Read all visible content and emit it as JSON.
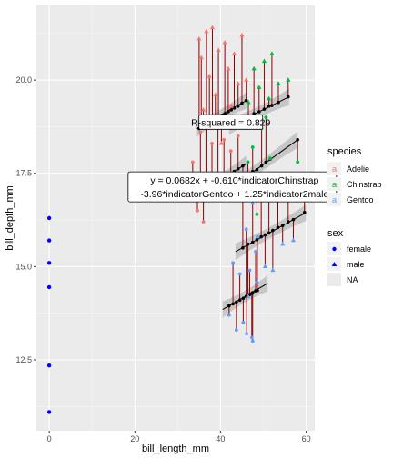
{
  "chart_data": {
    "type": "scatter",
    "title": "",
    "xlabel": "bill_length_mm",
    "ylabel": "bill_depth_mm",
    "xlim": [
      -3,
      62
    ],
    "ylim": [
      10.6,
      22
    ],
    "x_ticks": [
      0,
      20,
      40,
      60
    ],
    "y_ticks": [
      12.5,
      15.0,
      17.5,
      20.0
    ],
    "x_tick_labels": [
      "0",
      "20",
      "40",
      "60"
    ],
    "y_tick_labels": [
      "12.5",
      "15.0",
      "17.5",
      "20.0"
    ],
    "grid": true,
    "annotations": [
      {
        "text": "R-squared = 0.829",
        "x": 42.4,
        "y": 18.85
      },
      {
        "line1": "y = 0.0682x + -0.610*indicatorChinstrap",
        "line2": "-3.96*indicatorGentoo + 1.25*indicator2male",
        "x": 42.0,
        "y": 17.15
      }
    ],
    "legends": {
      "species": {
        "title": "species",
        "entries": [
          {
            "label": "Adelie",
            "color": "#F8766D"
          },
          {
            "label": "Chinstrap",
            "color": "#00BA38"
          },
          {
            "label": "Gentoo",
            "color": "#619CFF"
          }
        ]
      },
      "sex": {
        "title": "sex",
        "entries": [
          {
            "label": "female",
            "shape": "circle"
          },
          {
            "label": "male",
            "shape": "triangle"
          },
          {
            "label": "NA",
            "shape": "none"
          }
        ]
      }
    },
    "na_points": {
      "x": 0,
      "y": [
        16.3,
        15.7,
        15.1,
        14.45,
        12.35,
        11.1
      ],
      "color": "#0000FF"
    },
    "fit_lines": [
      {
        "x": [
          35.0,
          46.0
        ],
        "y": [
          17.0,
          17.75
        ],
        "group": "Adelie female"
      },
      {
        "x": [
          34.5,
          46.0
        ],
        "y": [
          18.7,
          19.45
        ],
        "group": "Adelie male"
      },
      {
        "x": [
          40.5,
          58.0
        ],
        "y": [
          16.95,
          18.4
        ],
        "group": "Chinstrap female"
      },
      {
        "x": [
          42.0,
          56.0
        ],
        "y": [
          18.75,
          19.55
        ],
        "group": "Chinstrap male"
      },
      {
        "x": [
          40.5,
          51.0
        ],
        "y": [
          13.85,
          14.55
        ],
        "group": "Gentoo female"
      },
      {
        "x": [
          43.5,
          60.0
        ],
        "y": [
          15.4,
          16.45
        ],
        "group": "Gentoo male"
      }
    ],
    "series": [
      {
        "name": "Adelie",
        "color": "#F8766D",
        "points": [
          {
            "x": 35.0,
            "y": 21.1,
            "fit": 18.7,
            "sex": "male"
          },
          {
            "x": 35.5,
            "y": 20.6,
            "fit": 18.75,
            "sex": "male"
          },
          {
            "x": 36.0,
            "y": 19.2,
            "fit": 18.78,
            "sex": "male"
          },
          {
            "x": 36.7,
            "y": 21.3,
            "fit": 18.8,
            "sex": "male"
          },
          {
            "x": 37.4,
            "y": 20.1,
            "fit": 18.85,
            "sex": "male"
          },
          {
            "x": 38.1,
            "y": 21.4,
            "fit": 18.9,
            "sex": "male"
          },
          {
            "x": 38.8,
            "y": 19.6,
            "fit": 18.95,
            "sex": "male"
          },
          {
            "x": 39.5,
            "y": 20.8,
            "fit": 19.0,
            "sex": "male"
          },
          {
            "x": 40.2,
            "y": 18.3,
            "fit": 19.05,
            "sex": "male"
          },
          {
            "x": 41.0,
            "y": 21.0,
            "fit": 19.1,
            "sex": "male"
          },
          {
            "x": 41.8,
            "y": 20.3,
            "fit": 19.15,
            "sex": "male"
          },
          {
            "x": 42.5,
            "y": 19.3,
            "fit": 19.2,
            "sex": "male"
          },
          {
            "x": 43.2,
            "y": 20.7,
            "fit": 19.25,
            "sex": "male"
          },
          {
            "x": 44.1,
            "y": 19.9,
            "fit": 19.3,
            "sex": "male"
          },
          {
            "x": 45.0,
            "y": 21.2,
            "fit": 19.38,
            "sex": "male"
          },
          {
            "x": 46.0,
            "y": 20.0,
            "fit": 19.45,
            "sex": "male"
          },
          {
            "x": 33.5,
            "y": 17.8,
            "fit": 17.0,
            "sex": "female"
          },
          {
            "x": 34.6,
            "y": 16.5,
            "fit": 17.0,
            "sex": "female"
          },
          {
            "x": 35.3,
            "y": 18.6,
            "fit": 17.05,
            "sex": "female"
          },
          {
            "x": 36.0,
            "y": 16.2,
            "fit": 17.08,
            "sex": "female"
          },
          {
            "x": 36.6,
            "y": 18.9,
            "fit": 17.12,
            "sex": "female"
          },
          {
            "x": 37.3,
            "y": 17.5,
            "fit": 17.15,
            "sex": "female"
          },
          {
            "x": 38.0,
            "y": 18.3,
            "fit": 17.2,
            "sex": "female"
          },
          {
            "x": 38.7,
            "y": 16.9,
            "fit": 17.25,
            "sex": "female"
          },
          {
            "x": 39.4,
            "y": 18.8,
            "fit": 17.3,
            "sex": "female"
          },
          {
            "x": 40.1,
            "y": 17.1,
            "fit": 17.35,
            "sex": "female"
          },
          {
            "x": 40.8,
            "y": 18.4,
            "fit": 17.4,
            "sex": "female"
          },
          {
            "x": 41.6,
            "y": 16.8,
            "fit": 17.45,
            "sex": "female"
          },
          {
            "x": 42.4,
            "y": 18.1,
            "fit": 17.5,
            "sex": "female"
          },
          {
            "x": 43.2,
            "y": 17.0,
            "fit": 17.55,
            "sex": "female"
          },
          {
            "x": 44.1,
            "y": 18.5,
            "fit": 17.62,
            "sex": "female"
          },
          {
            "x": 45.2,
            "y": 17.4,
            "fit": 17.7,
            "sex": "female"
          }
        ]
      },
      {
        "name": "Chinstrap",
        "color": "#00BA38",
        "points": [
          {
            "x": 46.5,
            "y": 19.4,
            "fit": 19.0,
            "sex": "male"
          },
          {
            "x": 47.8,
            "y": 20.3,
            "fit": 19.1,
            "sex": "male"
          },
          {
            "x": 49.0,
            "y": 19.8,
            "fit": 19.15,
            "sex": "male"
          },
          {
            "x": 50.2,
            "y": 20.5,
            "fit": 19.22,
            "sex": "male"
          },
          {
            "x": 51.3,
            "y": 19.5,
            "fit": 19.3,
            "sex": "male"
          },
          {
            "x": 52.0,
            "y": 20.7,
            "fit": 19.32,
            "sex": "male"
          },
          {
            "x": 53.5,
            "y": 19.9,
            "fit": 19.4,
            "sex": "male"
          },
          {
            "x": 55.8,
            "y": 20.0,
            "fit": 19.55,
            "sex": "male"
          },
          {
            "x": 46.4,
            "y": 17.8,
            "fit": 17.45,
            "sex": "female"
          },
          {
            "x": 47.5,
            "y": 18.2,
            "fit": 17.55,
            "sex": "female"
          },
          {
            "x": 48.5,
            "y": 16.4,
            "fit": 17.6,
            "sex": "female"
          },
          {
            "x": 49.6,
            "y": 18.7,
            "fit": 17.7,
            "sex": "female"
          },
          {
            "x": 50.6,
            "y": 19.0,
            "fit": 17.8,
            "sex": "female"
          },
          {
            "x": 51.6,
            "y": 17.9,
            "fit": 17.88,
            "sex": "female"
          },
          {
            "x": 58.0,
            "y": 17.8,
            "fit": 18.4,
            "sex": "female"
          }
        ]
      },
      {
        "name": "Gentoo",
        "color": "#619CFF",
        "points": [
          {
            "x": 46.1,
            "y": 13.2,
            "fit": 14.2,
            "sex": "female"
          },
          {
            "x": 46.8,
            "y": 14.9,
            "fit": 14.25,
            "sex": "female"
          },
          {
            "x": 47.5,
            "y": 13.0,
            "fit": 14.3,
            "sex": "female"
          },
          {
            "x": 48.2,
            "y": 15.4,
            "fit": 14.35,
            "sex": "female"
          },
          {
            "x": 42.0,
            "y": 13.7,
            "fit": 13.95,
            "sex": "female"
          },
          {
            "x": 42.9,
            "y": 15.1,
            "fit": 14.0,
            "sex": "female"
          },
          {
            "x": 43.7,
            "y": 13.3,
            "fit": 14.05,
            "sex": "female"
          },
          {
            "x": 44.5,
            "y": 14.8,
            "fit": 14.1,
            "sex": "female"
          },
          {
            "x": 45.3,
            "y": 13.5,
            "fit": 14.15,
            "sex": "female"
          },
          {
            "x": 46.0,
            "y": 16.0,
            "fit": 14.2,
            "sex": "female"
          },
          {
            "x": 47.3,
            "y": 13.1,
            "fit": 14.28,
            "sex": "female"
          },
          {
            "x": 48.6,
            "y": 15.8,
            "fit": 14.36,
            "sex": "female"
          },
          {
            "x": 45.2,
            "y": 17.0,
            "fit": 15.5,
            "sex": "male"
          },
          {
            "x": 46.4,
            "y": 14.2,
            "fit": 15.6,
            "sex": "male"
          },
          {
            "x": 47.5,
            "y": 16.7,
            "fit": 15.65,
            "sex": "male"
          },
          {
            "x": 48.5,
            "y": 14.6,
            "fit": 15.72,
            "sex": "male"
          },
          {
            "x": 49.5,
            "y": 17.0,
            "fit": 15.8,
            "sex": "male"
          },
          {
            "x": 50.4,
            "y": 15.0,
            "fit": 15.85,
            "sex": "male"
          },
          {
            "x": 51.3,
            "y": 16.9,
            "fit": 15.9,
            "sex": "male"
          },
          {
            "x": 52.2,
            "y": 14.9,
            "fit": 15.97,
            "sex": "male"
          },
          {
            "x": 53.4,
            "y": 17.2,
            "fit": 16.05,
            "sex": "male"
          },
          {
            "x": 54.5,
            "y": 15.6,
            "fit": 16.1,
            "sex": "male"
          },
          {
            "x": 55.8,
            "y": 16.8,
            "fit": 16.2,
            "sex": "male"
          },
          {
            "x": 57.0,
            "y": 15.7,
            "fit": 16.26,
            "sex": "male"
          },
          {
            "x": 59.6,
            "y": 17.0,
            "fit": 16.45,
            "sex": "male"
          }
        ]
      }
    ]
  }
}
